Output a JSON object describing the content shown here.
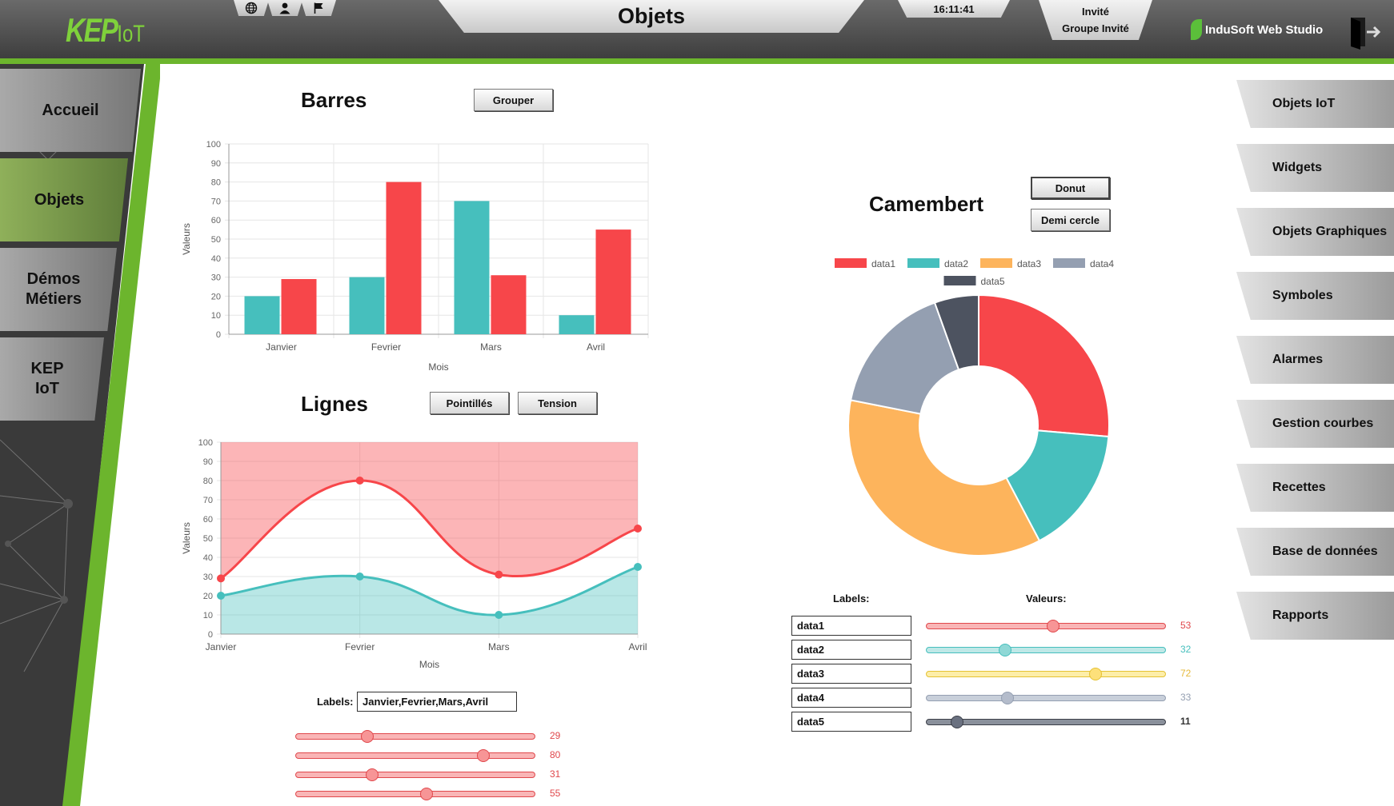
{
  "header": {
    "logo_main": "KEP",
    "logo_sub": "IoT",
    "page_title": "Objets",
    "clock": "16:11:41",
    "user_name": "Invité",
    "user_group": "Groupe Invité",
    "studio_label": "InduSoft Web Studio",
    "icons": [
      "globe-icon",
      "user-icon",
      "flag-icon"
    ]
  },
  "left_menu": {
    "items": [
      {
        "label": "Accueil"
      },
      {
        "label": "Objets",
        "active": true
      },
      {
        "label_line1": "Démos",
        "label_line2": "Métiers"
      },
      {
        "label_line1": "KEP",
        "label_line2": "IoT"
      }
    ]
  },
  "right_menu": {
    "items": [
      "Objets IoT",
      "Widgets",
      "Objets Graphiques",
      "Symboles",
      "Alarmes",
      "Gestion courbes",
      "Recettes",
      "Base de données",
      "Rapports"
    ]
  },
  "bars": {
    "title": "Barres",
    "button": "Grouper"
  },
  "lines": {
    "title": "Lignes",
    "button_dotted": "Pointillés",
    "button_tension": "Tension",
    "labels_caption": "Labels:",
    "labels_value": "Janvier,Fevrier,Mars,Avril",
    "slider_values": [
      29,
      80,
      31,
      55
    ]
  },
  "pie": {
    "title": "Camembert",
    "button_donut": "Donut",
    "button_half": "Demi cercle",
    "labels_caption": "Labels:",
    "values_caption": "Valeurs:"
  },
  "colors": {
    "red": "#f7464a",
    "teal": "#46bfbd",
    "orange": "#fdb45c",
    "gray": "#949fb1",
    "dark": "#4d5360",
    "green_accent": "#6cb52d"
  },
  "chart_data": [
    {
      "type": "bar",
      "title": "Barres",
      "categories": [
        "Janvier",
        "Fevrier",
        "Mars",
        "Avril"
      ],
      "series": [
        {
          "values": [
            20,
            30,
            70,
            10
          ],
          "color": "#46bfbd"
        },
        {
          "values": [
            29,
            80,
            31,
            55
          ],
          "color": "#f7464a"
        }
      ],
      "xlabel": "Mois",
      "ylabel": "Valeurs",
      "ylim": [
        0,
        100
      ],
      "yticks": [
        0,
        10,
        20,
        30,
        40,
        50,
        60,
        70,
        80,
        90,
        100
      ],
      "grid": true
    },
    {
      "type": "area",
      "title": "Lignes",
      "categories": [
        "Janvier",
        "Fevrier",
        "Mars",
        "Avril"
      ],
      "series": [
        {
          "values": [
            29,
            80,
            31,
            55
          ],
          "color": "#f7464a"
        },
        {
          "values": [
            20,
            30,
            10,
            35
          ],
          "color": "#46bfbd"
        }
      ],
      "xlabel": "Mois",
      "ylabel": "Valeurs",
      "ylim": [
        0,
        100
      ],
      "yticks": [
        0,
        10,
        20,
        30,
        40,
        50,
        60,
        70,
        80,
        90,
        100
      ],
      "grid": true
    },
    {
      "type": "pie",
      "title": "Camembert",
      "donut": true,
      "labels": [
        "data1",
        "data2",
        "data3",
        "data4",
        "data5"
      ],
      "values": [
        53,
        32,
        72,
        33,
        11
      ],
      "colors": [
        "#f7464a",
        "#46bfbd",
        "#fdb45c",
        "#949fb1",
        "#4d5360"
      ],
      "legend": "top"
    }
  ]
}
